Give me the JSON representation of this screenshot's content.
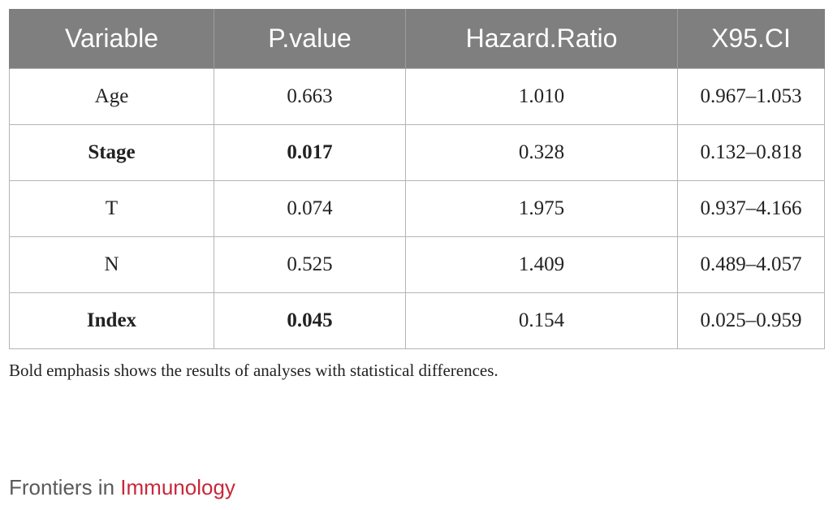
{
  "table": {
    "headers": [
      "Variable",
      "P.value",
      "Hazard.Ratio",
      "X95.CI"
    ],
    "rows": [
      {
        "cells": [
          "Age",
          "0.663",
          "1.010",
          "0.967–1.053"
        ],
        "bold": [
          false,
          false,
          false,
          false
        ]
      },
      {
        "cells": [
          "Stage",
          "0.017",
          "0.328",
          "0.132–0.818"
        ],
        "bold": [
          true,
          true,
          false,
          false
        ]
      },
      {
        "cells": [
          "T",
          "0.074",
          "1.975",
          "0.937–4.166"
        ],
        "bold": [
          false,
          false,
          false,
          false
        ]
      },
      {
        "cells": [
          "N",
          "0.525",
          "1.409",
          "0.489–4.057"
        ],
        "bold": [
          false,
          false,
          false,
          false
        ]
      },
      {
        "cells": [
          "Index",
          "0.045",
          "0.154",
          "0.025–0.959"
        ],
        "bold": [
          true,
          true,
          false,
          false
        ]
      }
    ]
  },
  "footnote": "Bold emphasis shows the results of analyses with statistical differences.",
  "journal": {
    "prefix": "Frontiers in",
    "name": "Immunology"
  },
  "colors": {
    "header_bg": "#7f7f7f",
    "accent": "#c8283a"
  }
}
